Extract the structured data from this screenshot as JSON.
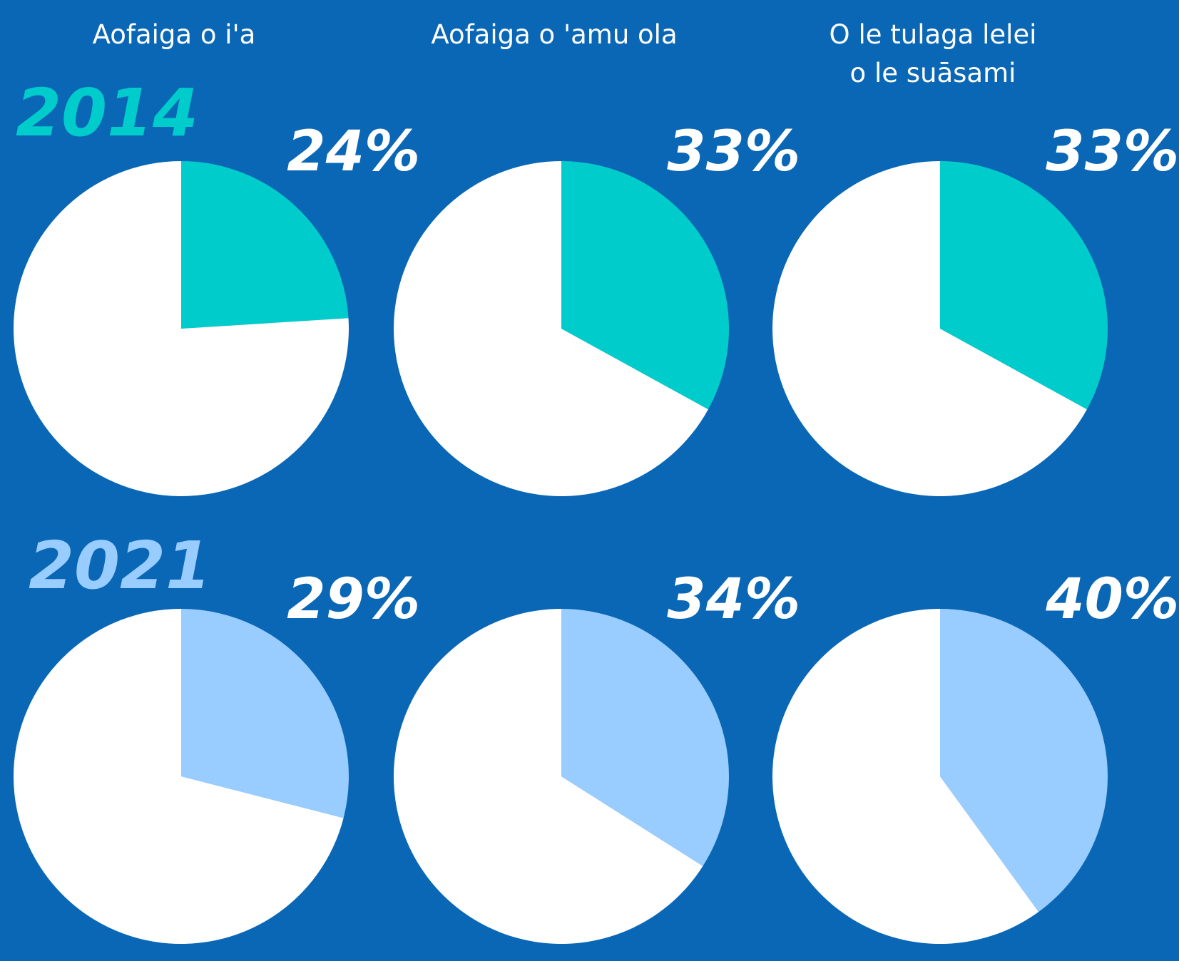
{
  "chart_data": [
    {
      "type": "pie",
      "title": "Aofaiga o i'a",
      "annotation": "2014",
      "annotation_color": "#00cccc",
      "values": [
        24,
        76
      ],
      "value_labels": [
        "24%",
        null
      ],
      "colors": [
        "#00cccc",
        "#ffffff"
      ]
    },
    {
      "type": "pie",
      "title": "Aofaiga o 'amu ola",
      "values": [
        33,
        67
      ],
      "value_labels": [
        "33%",
        null
      ],
      "colors": [
        "#00cccc",
        "#ffffff"
      ]
    },
    {
      "type": "pie",
      "title": "O le tulaga lelei\no le suāsami",
      "values": [
        33,
        67
      ],
      "value_labels": [
        "33%",
        null
      ],
      "colors": [
        "#00cccc",
        "#ffffff"
      ]
    },
    {
      "type": "pie",
      "annotation": "2021",
      "annotation_color": "#99ccff",
      "values": [
        29,
        71
      ],
      "value_labels": [
        "29%",
        null
      ],
      "colors": [
        "#99ccff",
        "#ffffff"
      ]
    },
    {
      "type": "pie",
      "values": [
        34,
        66
      ],
      "value_labels": [
        "34%",
        null
      ],
      "colors": [
        "#99ccff",
        "#ffffff"
      ]
    },
    {
      "type": "pie",
      "values": [
        40,
        60
      ],
      "value_labels": [
        "40%",
        null
      ],
      "colors": [
        "#99ccff",
        "#ffffff"
      ]
    }
  ]
}
